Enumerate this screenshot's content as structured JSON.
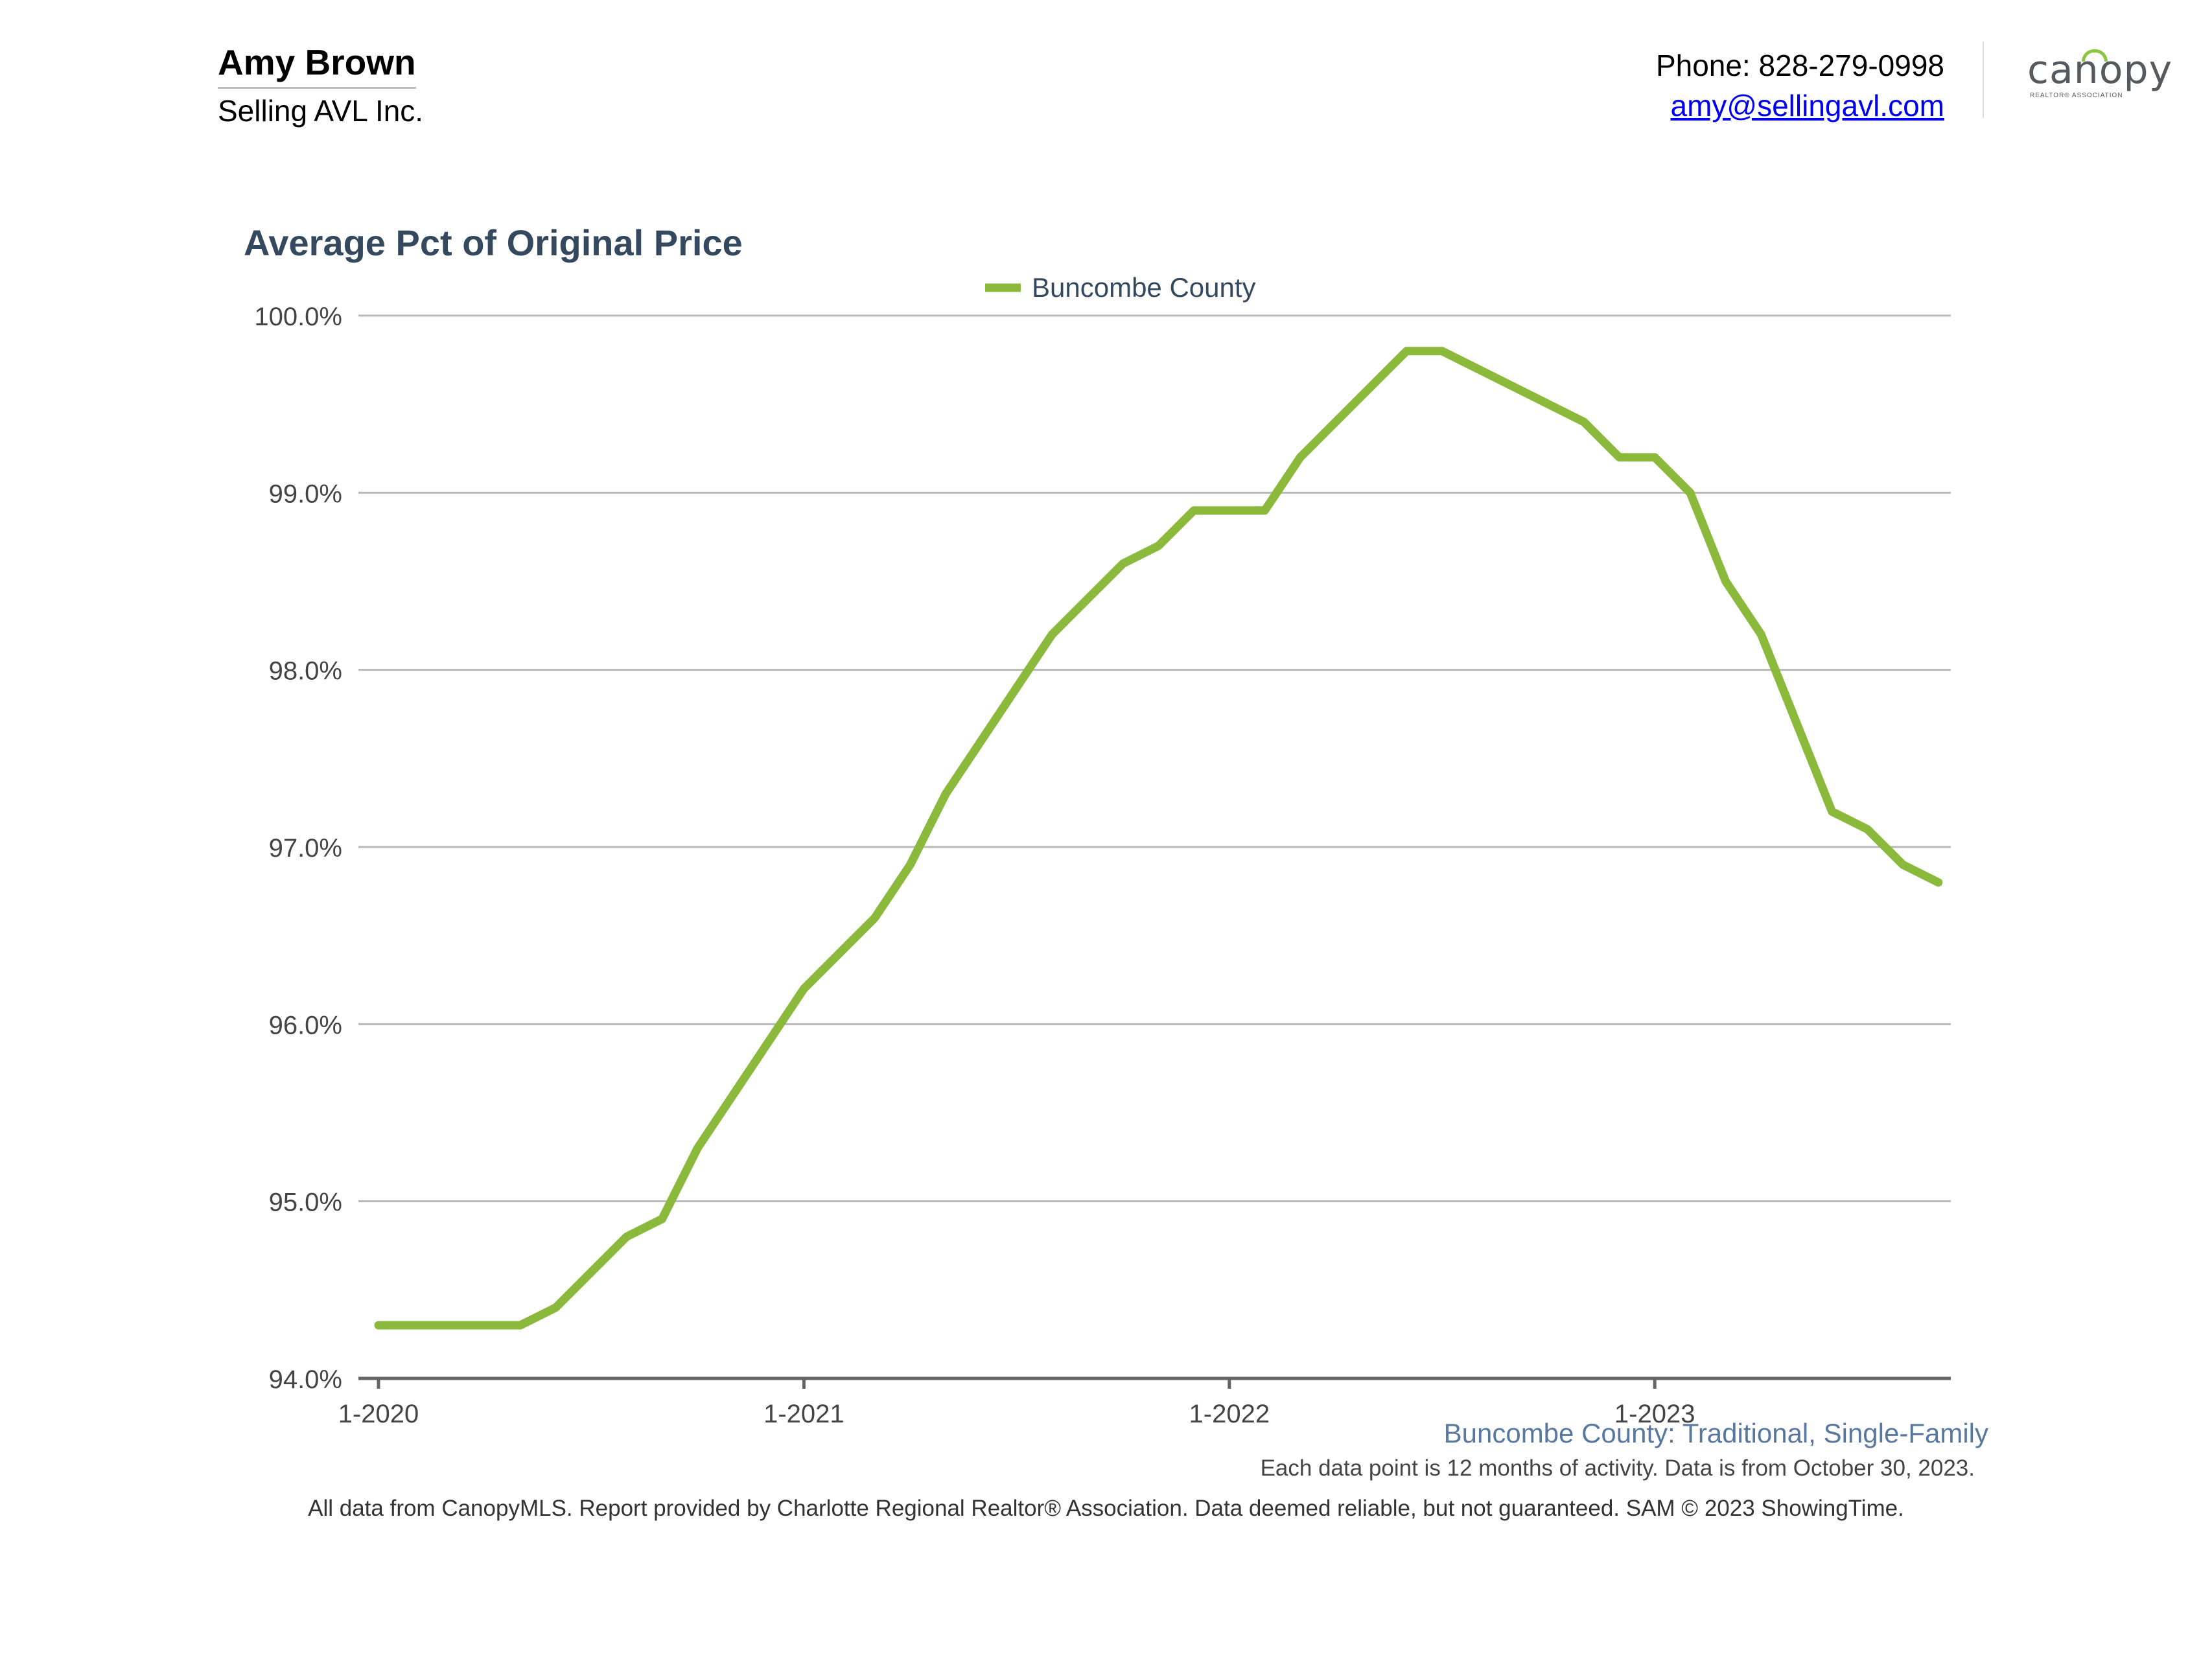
{
  "header": {
    "agent_name": "Amy Brown",
    "company": "Selling AVL Inc.",
    "phone": "Phone: 828-279-0998",
    "email": "amy@sellingavl.com",
    "logo_text": "canopy",
    "logo_subtext": "REALTOR® ASSOCIATION",
    "logo_accent_color": "#8cc63f"
  },
  "chart_data": {
    "type": "line",
    "title": "Average Pct of Original Price",
    "xlabel": "",
    "ylabel": "",
    "ylim": [
      94.0,
      100.0
    ],
    "y_ticks": [
      94.0,
      95.0,
      96.0,
      97.0,
      98.0,
      99.0,
      100.0
    ],
    "y_tick_labels": [
      "94.0%",
      "95.0%",
      "96.0%",
      "97.0%",
      "98.0%",
      "99.0%",
      "100.0%"
    ],
    "x_tick_labels": [
      "1-2020",
      "1-2021",
      "1-2022",
      "1-2023"
    ],
    "x_tick_positions": [
      0,
      12,
      24,
      36
    ],
    "grid": true,
    "legend_position": "top-center",
    "x": [
      "1-2020",
      "2-2020",
      "3-2020",
      "4-2020",
      "5-2020",
      "6-2020",
      "7-2020",
      "8-2020",
      "9-2020",
      "10-2020",
      "11-2020",
      "12-2020",
      "1-2021",
      "2-2021",
      "3-2021",
      "4-2021",
      "5-2021",
      "6-2021",
      "7-2021",
      "8-2021",
      "9-2021",
      "10-2021",
      "11-2021",
      "12-2021",
      "1-2022",
      "2-2022",
      "3-2022",
      "4-2022",
      "5-2022",
      "6-2022",
      "7-2022",
      "8-2022",
      "9-2022",
      "10-2022",
      "11-2022",
      "12-2022",
      "1-2023",
      "2-2023",
      "3-2023",
      "4-2023",
      "5-2023",
      "6-2023",
      "7-2023",
      "8-2023",
      "9-2023"
    ],
    "series": [
      {
        "name": "Buncombe County",
        "color": "#8ab93c",
        "values": [
          94.3,
          94.3,
          94.3,
          94.3,
          94.3,
          94.4,
          94.6,
          94.8,
          94.9,
          95.3,
          95.6,
          95.9,
          96.2,
          96.4,
          96.6,
          96.9,
          97.3,
          97.6,
          97.9,
          98.2,
          98.4,
          98.6,
          98.7,
          98.9,
          98.9,
          98.9,
          99.2,
          99.4,
          99.6,
          99.8,
          99.8,
          99.7,
          99.6,
          99.5,
          99.4,
          99.2,
          99.2,
          99.0,
          98.5,
          98.2,
          97.7,
          97.2,
          97.1,
          96.9,
          96.8
        ]
      }
    ]
  },
  "chart_footer": {
    "subtitle": "Buncombe County: Traditional, Single-Family",
    "note": "Each data point is 12 months of activity. Data is from October 30, 2023.",
    "disclaimer": "All data from CanopyMLS. Report provided by Charlotte Regional Realtor® Association. Data deemed reliable, but not guaranteed. SAM © 2023 ShowingTime."
  }
}
